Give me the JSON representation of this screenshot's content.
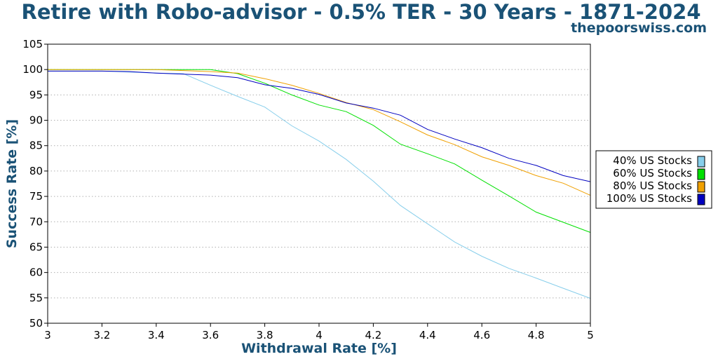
{
  "header": {
    "title": "Retire with Robo-advisor - 0.5% TER - 30 Years - 1871-2024",
    "source": "thepoorswiss.com"
  },
  "colors": {
    "title": "#1a5276",
    "grid": "#b0b0b0",
    "axis": "#000000"
  },
  "chart_data": {
    "type": "line",
    "title": "Retire with Robo-advisor - 0.5% TER - 30 Years - 1871-2024",
    "xlabel": "Withdrawal Rate [%]",
    "ylabel": "Success Rate [%]",
    "xlim": [
      3,
      5
    ],
    "ylim": [
      50,
      105
    ],
    "xticks": [
      "3",
      "3.2",
      "3.4",
      "3.6",
      "3.8",
      "4",
      "4.2",
      "4.4",
      "4.6",
      "4.8",
      "5"
    ],
    "yticks": [
      "50",
      "55",
      "60",
      "65",
      "70",
      "75",
      "80",
      "85",
      "90",
      "95",
      "100",
      "105"
    ],
    "grid": "horizontal-dotted",
    "legend_position": "right",
    "x": [
      3.0,
      3.1,
      3.2,
      3.3,
      3.4,
      3.5,
      3.6,
      3.7,
      3.8,
      3.9,
      4.0,
      4.1,
      4.2,
      4.3,
      4.4,
      4.5,
      4.6,
      4.7,
      4.8,
      4.9,
      5.0
    ],
    "series": [
      {
        "name": "40% US Stocks",
        "color": "#87ceeb",
        "values": [
          99.7,
          99.7,
          99.7,
          99.5,
          99.3,
          99.2,
          96.9,
          94.7,
          92.6,
          88.9,
          85.9,
          82.3,
          78.0,
          73.2,
          69.6,
          66.0,
          63.2,
          60.8,
          58.9,
          56.9,
          54.9
        ]
      },
      {
        "name": "60% US Stocks",
        "color": "#00e000",
        "values": [
          100,
          100,
          100,
          100,
          100,
          100,
          100,
          99.2,
          97.3,
          95.0,
          93.0,
          91.7,
          89.0,
          85.3,
          83.4,
          81.4,
          78.2,
          75.1,
          71.9,
          69.9,
          67.9
        ]
      },
      {
        "name": "80% US Stocks",
        "color": "#f0a000",
        "values": [
          100,
          100,
          100,
          100,
          100,
          99.8,
          99.6,
          99.3,
          98.2,
          96.9,
          95.3,
          93.5,
          92.1,
          89.7,
          87.1,
          85.2,
          82.8,
          81.1,
          79.1,
          77.6,
          75.2
        ]
      },
      {
        "name": "100% US Stocks",
        "color": "#0000c0",
        "values": [
          99.7,
          99.7,
          99.7,
          99.6,
          99.3,
          99.1,
          98.9,
          98.4,
          97.0,
          96.3,
          95.1,
          93.4,
          92.4,
          91.0,
          88.2,
          86.3,
          84.6,
          82.5,
          81.1,
          79.1,
          77.9
        ]
      }
    ]
  }
}
